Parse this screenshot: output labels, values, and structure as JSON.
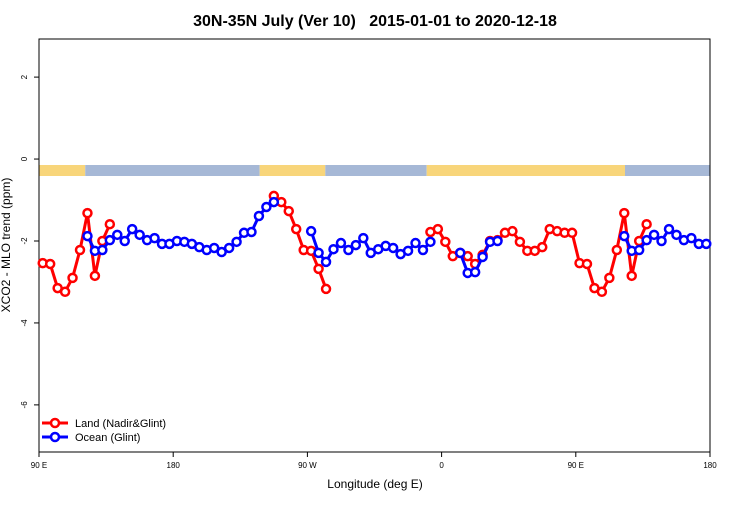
{
  "chart_data": {
    "type": "line",
    "title": "30N-35N July (Ver 10)   2015-01-01 to 2020-12-18",
    "x_label": "Longitude (deg E)",
    "y_label": "XCO2 - MLO trend (ppm)",
    "x": [
      92.5,
      97.5,
      102.5,
      107.5,
      112.5,
      117.5,
      122.5,
      127.5,
      132.5,
      137.5,
      142.5,
      147.5,
      152.5,
      157.5,
      162.5,
      167.5,
      172.5,
      177.5,
      182.5,
      187.5,
      192.5,
      197.5,
      202.5,
      207.5,
      212.5,
      217.5,
      222.5,
      227.5,
      232.5,
      237.5,
      242.5,
      247.5,
      252.5,
      257.5,
      262.5,
      267.5,
      272.5,
      277.5,
      282.5,
      287.5,
      292.5,
      297.5,
      302.5,
      307.5,
      312.5,
      317.5,
      322.5,
      327.5,
      332.5,
      337.5,
      342.5,
      347.5,
      352.5,
      357.5,
      362.5,
      367.5,
      372.5,
      377.5,
      382.5,
      387.5,
      392.5,
      397.5,
      402.5,
      407.5,
      412.5,
      417.5,
      422.5,
      427.5,
      432.5,
      437.5,
      442.5,
      447.5,
      452.5,
      457.5,
      462.5,
      467.5,
      472.5,
      477.5,
      482.5,
      487.5,
      492.5,
      497.5,
      502.5,
      507.5,
      512.5,
      517.5,
      522.5,
      527.5,
      532.5,
      537.5
    ],
    "series": [
      {
        "name": "Land (Nadir&Glint)",
        "color": "#ff0000",
        "values": [
          -2.54,
          -2.56,
          -3.15,
          -3.24,
          -2.9,
          -2.22,
          -1.32,
          -2.85,
          -2.0,
          -1.59,
          null,
          null,
          null,
          null,
          null,
          null,
          null,
          null,
          null,
          null,
          null,
          null,
          null,
          null,
          null,
          null,
          null,
          null,
          null,
          null,
          null,
          -0.9,
          -1.05,
          -1.27,
          -1.71,
          -2.22,
          -2.24,
          -2.68,
          -3.17,
          null,
          null,
          null,
          null,
          null,
          null,
          null,
          null,
          null,
          null,
          null,
          null,
          null,
          -1.78,
          -1.71,
          -2.02,
          -2.37,
          -2.29,
          -2.37,
          -2.56,
          -2.34,
          -2.0,
          -1.98,
          -1.8,
          -1.76,
          -2.02,
          -2.24,
          -2.24,
          -2.15,
          -1.71,
          -1.76,
          -1.8,
          -1.8,
          -2.54,
          -2.56,
          -3.15,
          -3.24,
          -2.9,
          -2.22,
          -1.32,
          -2.85,
          -2.0,
          -1.59,
          null,
          null,
          null,
          null,
          null,
          null,
          null,
          null
        ]
      },
      {
        "name": "Ocean (Glint)",
        "color": "#0000ff",
        "values": [
          null,
          null,
          null,
          null,
          null,
          null,
          -1.88,
          -2.24,
          -2.22,
          -1.98,
          -1.85,
          -2.0,
          -1.71,
          -1.85,
          -1.98,
          -1.93,
          -2.07,
          -2.07,
          -2.0,
          -2.02,
          -2.07,
          -2.15,
          -2.22,
          -2.17,
          -2.27,
          -2.17,
          -2.02,
          -1.8,
          -1.78,
          -1.39,
          -1.17,
          -1.05,
          null,
          null,
          null,
          null,
          -1.76,
          -2.29,
          -2.51,
          -2.2,
          -2.05,
          -2.22,
          -2.1,
          -1.93,
          -2.29,
          -2.2,
          -2.12,
          -2.17,
          -2.32,
          -2.24,
          -2.05,
          -2.22,
          -2.02,
          null,
          null,
          null,
          -2.29,
          -2.78,
          -2.76,
          -2.39,
          -2.02,
          -2.0,
          null,
          null,
          null,
          null,
          null,
          null,
          null,
          null,
          null,
          null,
          null,
          null,
          null,
          null,
          null,
          null,
          -1.88,
          -2.24,
          -2.22,
          -1.98,
          -1.85,
          -2.0,
          -1.71,
          -1.85,
          -1.98,
          -1.93,
          -2.07,
          -2.07
        ]
      }
    ],
    "surface_strip": [
      {
        "from": 90,
        "to": 121,
        "color": "#f8d57a"
      },
      {
        "from": 121,
        "to": 238,
        "color": "#a6b8d6"
      },
      {
        "from": 238,
        "to": 282,
        "color": "#f8d57a"
      },
      {
        "from": 282,
        "to": 350,
        "color": "#a6b8d6"
      },
      {
        "from": 350,
        "to": 483,
        "color": "#f8d57a"
      },
      {
        "from": 483,
        "to": 540,
        "color": "#a6b8d6"
      }
    ],
    "xlim": [
      90,
      540
    ],
    "ylim": [
      -7.15,
      2.93
    ],
    "xticks": [
      {
        "value": 90,
        "label": "90 E"
      },
      180,
      {
        "value": 270,
        "label": "90 W"
      },
      {
        "value": 360,
        "label": "0"
      },
      {
        "value": 450,
        "label": "90 E"
      },
      {
        "value": 540,
        "label": "180"
      }
    ],
    "yticks": [
      -6,
      -4,
      -2,
      0,
      2
    ],
    "legend": "bottom-left"
  }
}
